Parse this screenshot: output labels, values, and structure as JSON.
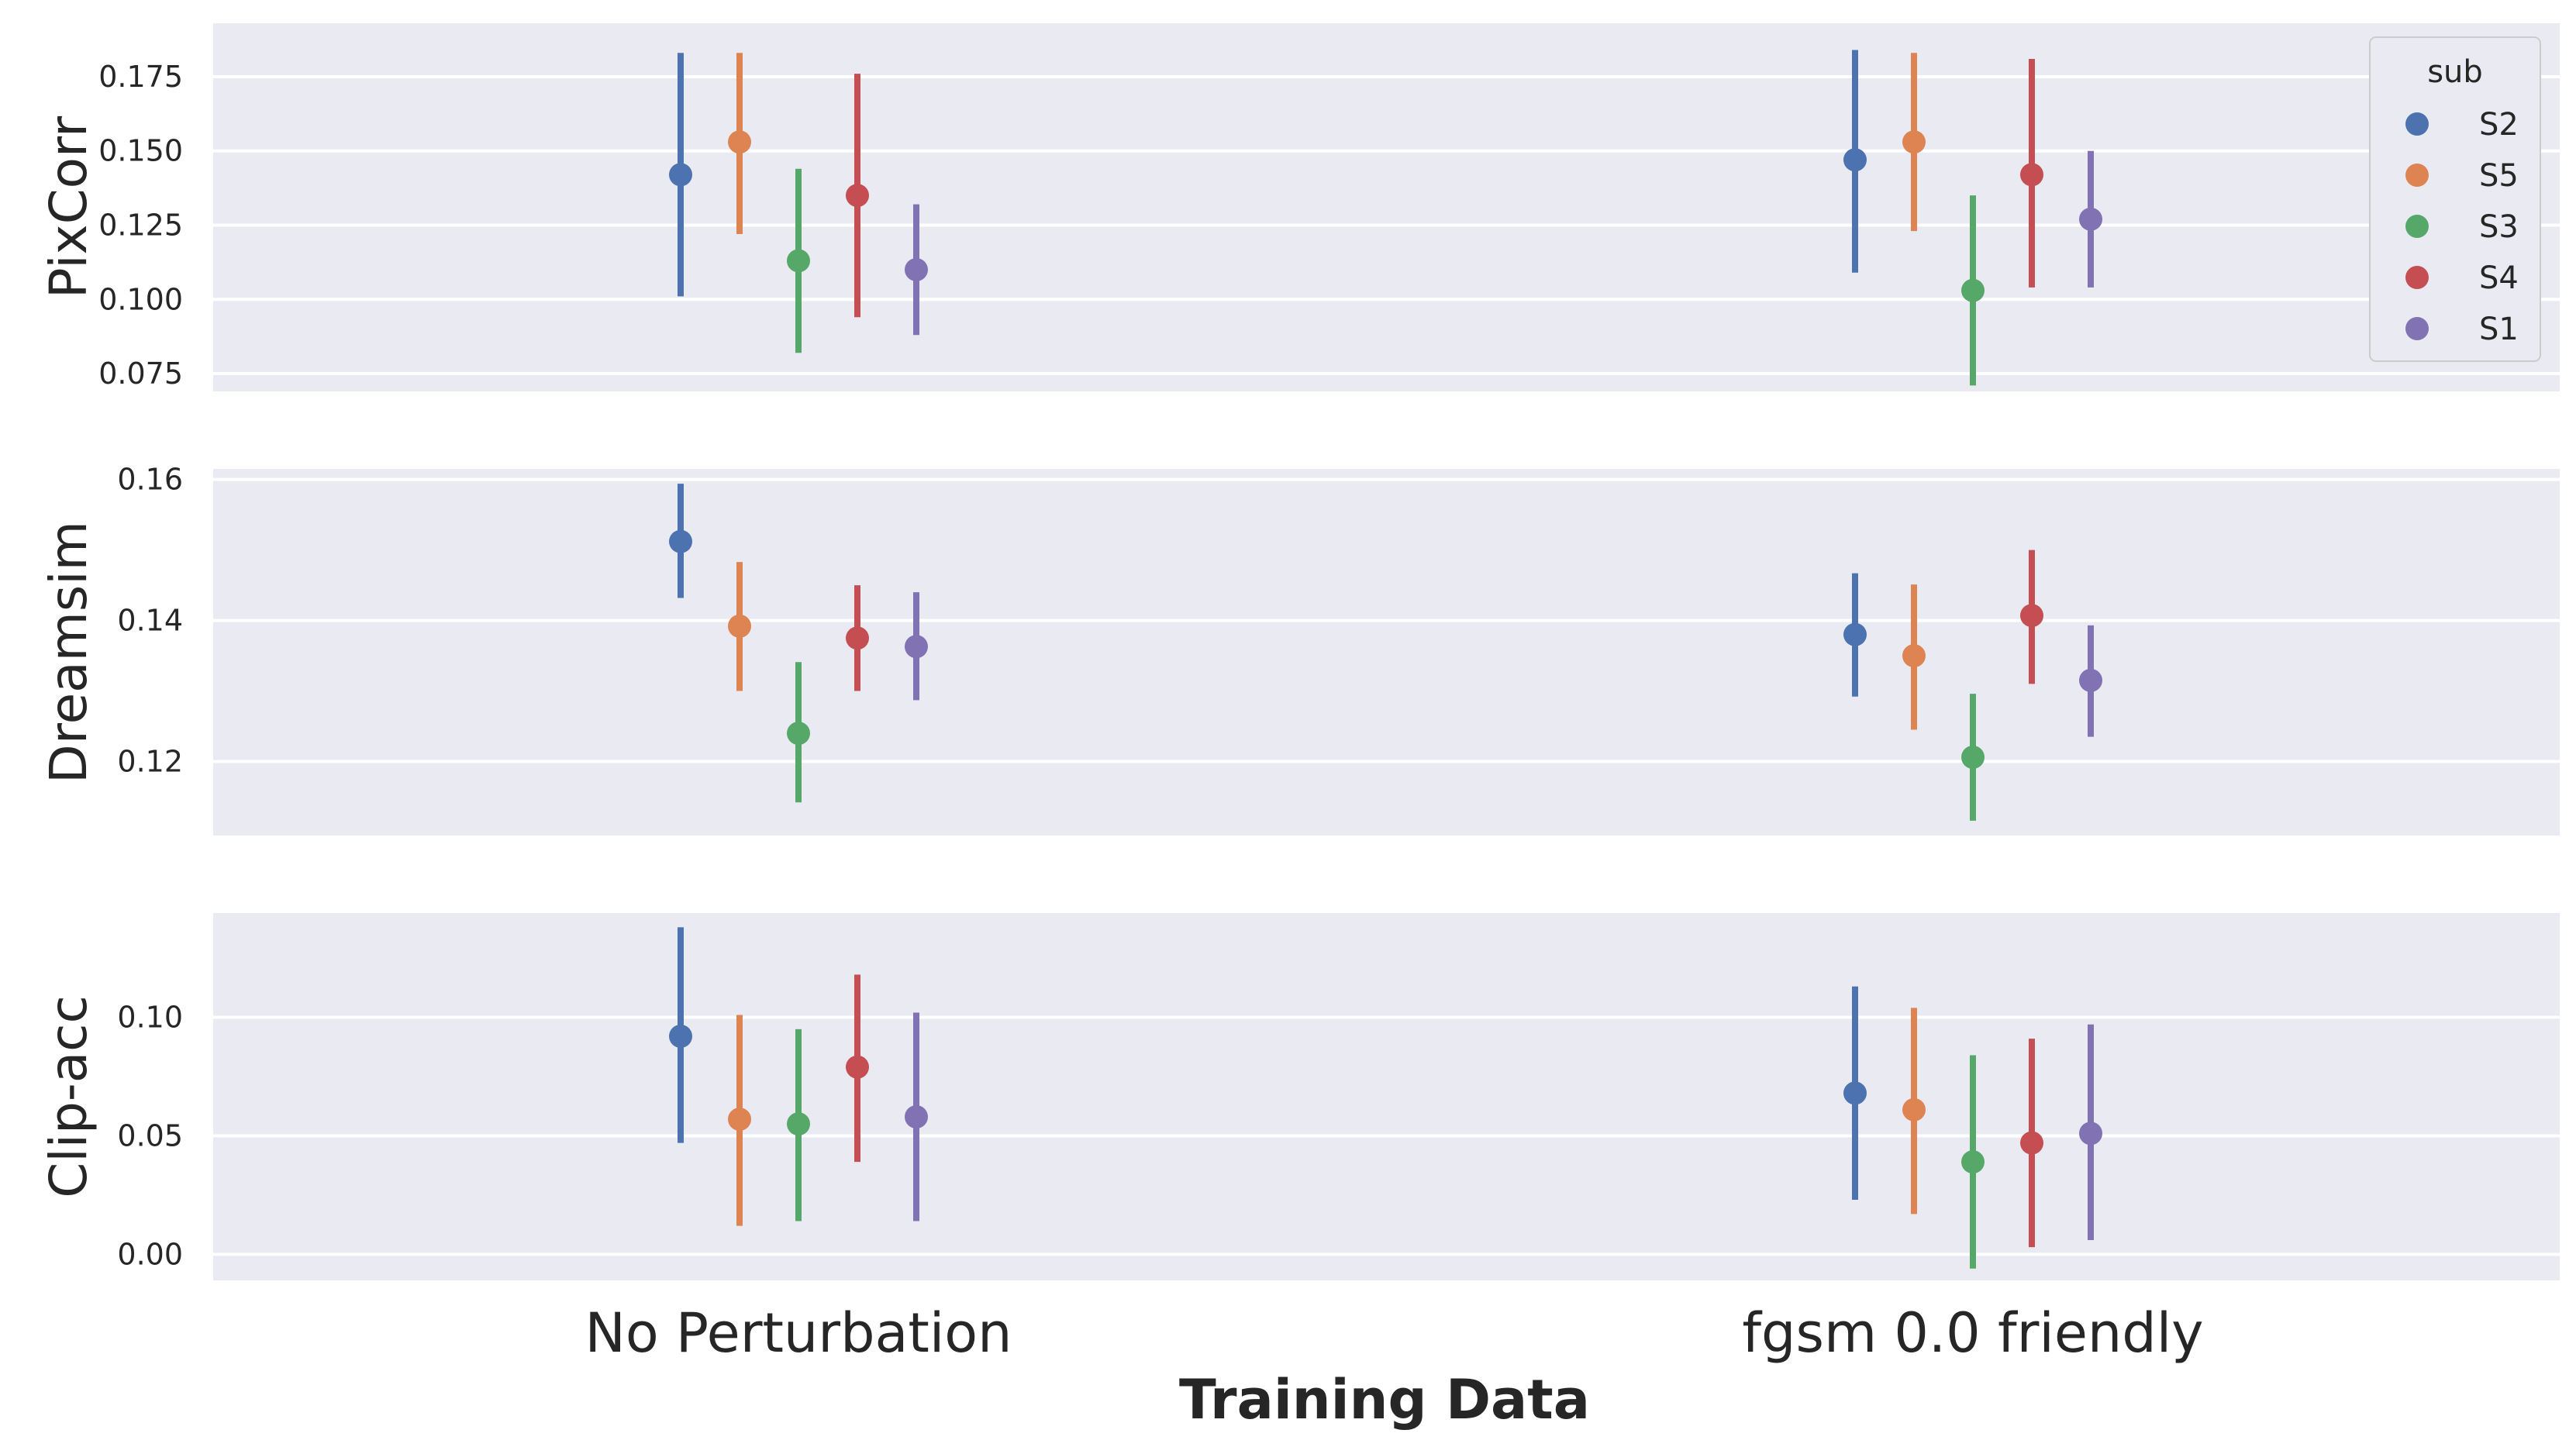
{
  "chart_data": {
    "type": "pointplot",
    "xlabel": "Training Data",
    "categories": [
      "No Perturbation",
      "fgsm 0.0 friendly"
    ],
    "legend": {
      "title": "sub",
      "location": "upper-right",
      "entries": [
        "S2",
        "S5",
        "S3",
        "S4",
        "S1"
      ]
    },
    "colors": {
      "S2": "#4c72b0",
      "S5": "#dd8452",
      "S3": "#55a868",
      "S4": "#c44e52",
      "S1": "#8172b3",
      "panel_bg": "#eaeaf2",
      "grid": "#ffffff"
    },
    "panels": [
      {
        "ylabel": "PixCorr",
        "ylim": [
          0.069,
          0.193
        ],
        "yticks": [
          0.075,
          0.1,
          0.125,
          0.15,
          0.175
        ],
        "ytick_labels": [
          "0.075",
          "0.100",
          "0.125",
          "0.150",
          "0.175"
        ],
        "series": [
          {
            "name": "S2",
            "values": [
              0.142,
              0.147
            ],
            "lower": [
              0.101,
              0.109
            ],
            "upper": [
              0.183,
              0.184
            ]
          },
          {
            "name": "S5",
            "values": [
              0.153,
              0.153
            ],
            "lower": [
              0.122,
              0.123
            ],
            "upper": [
              0.183,
              0.183
            ]
          },
          {
            "name": "S3",
            "values": [
              0.113,
              0.103
            ],
            "lower": [
              0.082,
              0.071
            ],
            "upper": [
              0.144,
              0.135
            ]
          },
          {
            "name": "S4",
            "values": [
              0.135,
              0.142
            ],
            "lower": [
              0.094,
              0.104
            ],
            "upper": [
              0.176,
              0.181
            ]
          },
          {
            "name": "S1",
            "values": [
              0.11,
              0.127
            ],
            "lower": [
              0.088,
              0.104
            ],
            "upper": [
              0.132,
              0.15
            ]
          }
        ]
      },
      {
        "ylabel": "Dreamsim",
        "ylim": [
          0.1095,
          0.1615
        ],
        "yticks": [
          0.12,
          0.14,
          0.16
        ],
        "ytick_labels": [
          "0.12",
          "0.14",
          "0.16"
        ],
        "series": [
          {
            "name": "S2",
            "values": [
              0.1512,
              0.138
            ],
            "lower": [
              0.1432,
              0.1292
            ],
            "upper": [
              0.1594,
              0.1467
            ]
          },
          {
            "name": "S5",
            "values": [
              0.1392,
              0.135
            ],
            "lower": [
              0.13,
              0.1245
            ],
            "upper": [
              0.1483,
              0.1451
            ]
          },
          {
            "name": "S3",
            "values": [
              0.124,
              0.1206
            ],
            "lower": [
              0.1142,
              0.1116
            ],
            "upper": [
              0.1341,
              0.1296
            ]
          },
          {
            "name": "S4",
            "values": [
              0.1375,
              0.1407
            ],
            "lower": [
              0.13,
              0.131
            ],
            "upper": [
              0.145,
              0.15
            ]
          },
          {
            "name": "S1",
            "values": [
              0.1363,
              0.1315
            ],
            "lower": [
              0.1287,
              0.1235
            ],
            "upper": [
              0.144,
              0.1393
            ]
          }
        ]
      },
      {
        "ylabel": "Clip-acc",
        "ylim": [
          -0.011,
          0.144
        ],
        "yticks": [
          0.0,
          0.05,
          0.1
        ],
        "ytick_labels": [
          "0.00",
          "0.05",
          "0.10"
        ],
        "series": [
          {
            "name": "S2",
            "values": [
              0.092,
              0.068
            ],
            "lower": [
              0.047,
              0.023
            ],
            "upper": [
              0.138,
              0.113
            ]
          },
          {
            "name": "S5",
            "values": [
              0.057,
              0.061
            ],
            "lower": [
              0.012,
              0.017
            ],
            "upper": [
              0.101,
              0.104
            ]
          },
          {
            "name": "S3",
            "values": [
              0.055,
              0.039
            ],
            "lower": [
              0.014,
              -0.006
            ],
            "upper": [
              0.095,
              0.084
            ]
          },
          {
            "name": "S4",
            "values": [
              0.079,
              0.047
            ],
            "lower": [
              0.039,
              0.003
            ],
            "upper": [
              0.118,
              0.091
            ]
          },
          {
            "name": "S1",
            "values": [
              0.058,
              0.051
            ],
            "lower": [
              0.014,
              0.006
            ],
            "upper": [
              0.102,
              0.097
            ]
          }
        ]
      }
    ]
  }
}
